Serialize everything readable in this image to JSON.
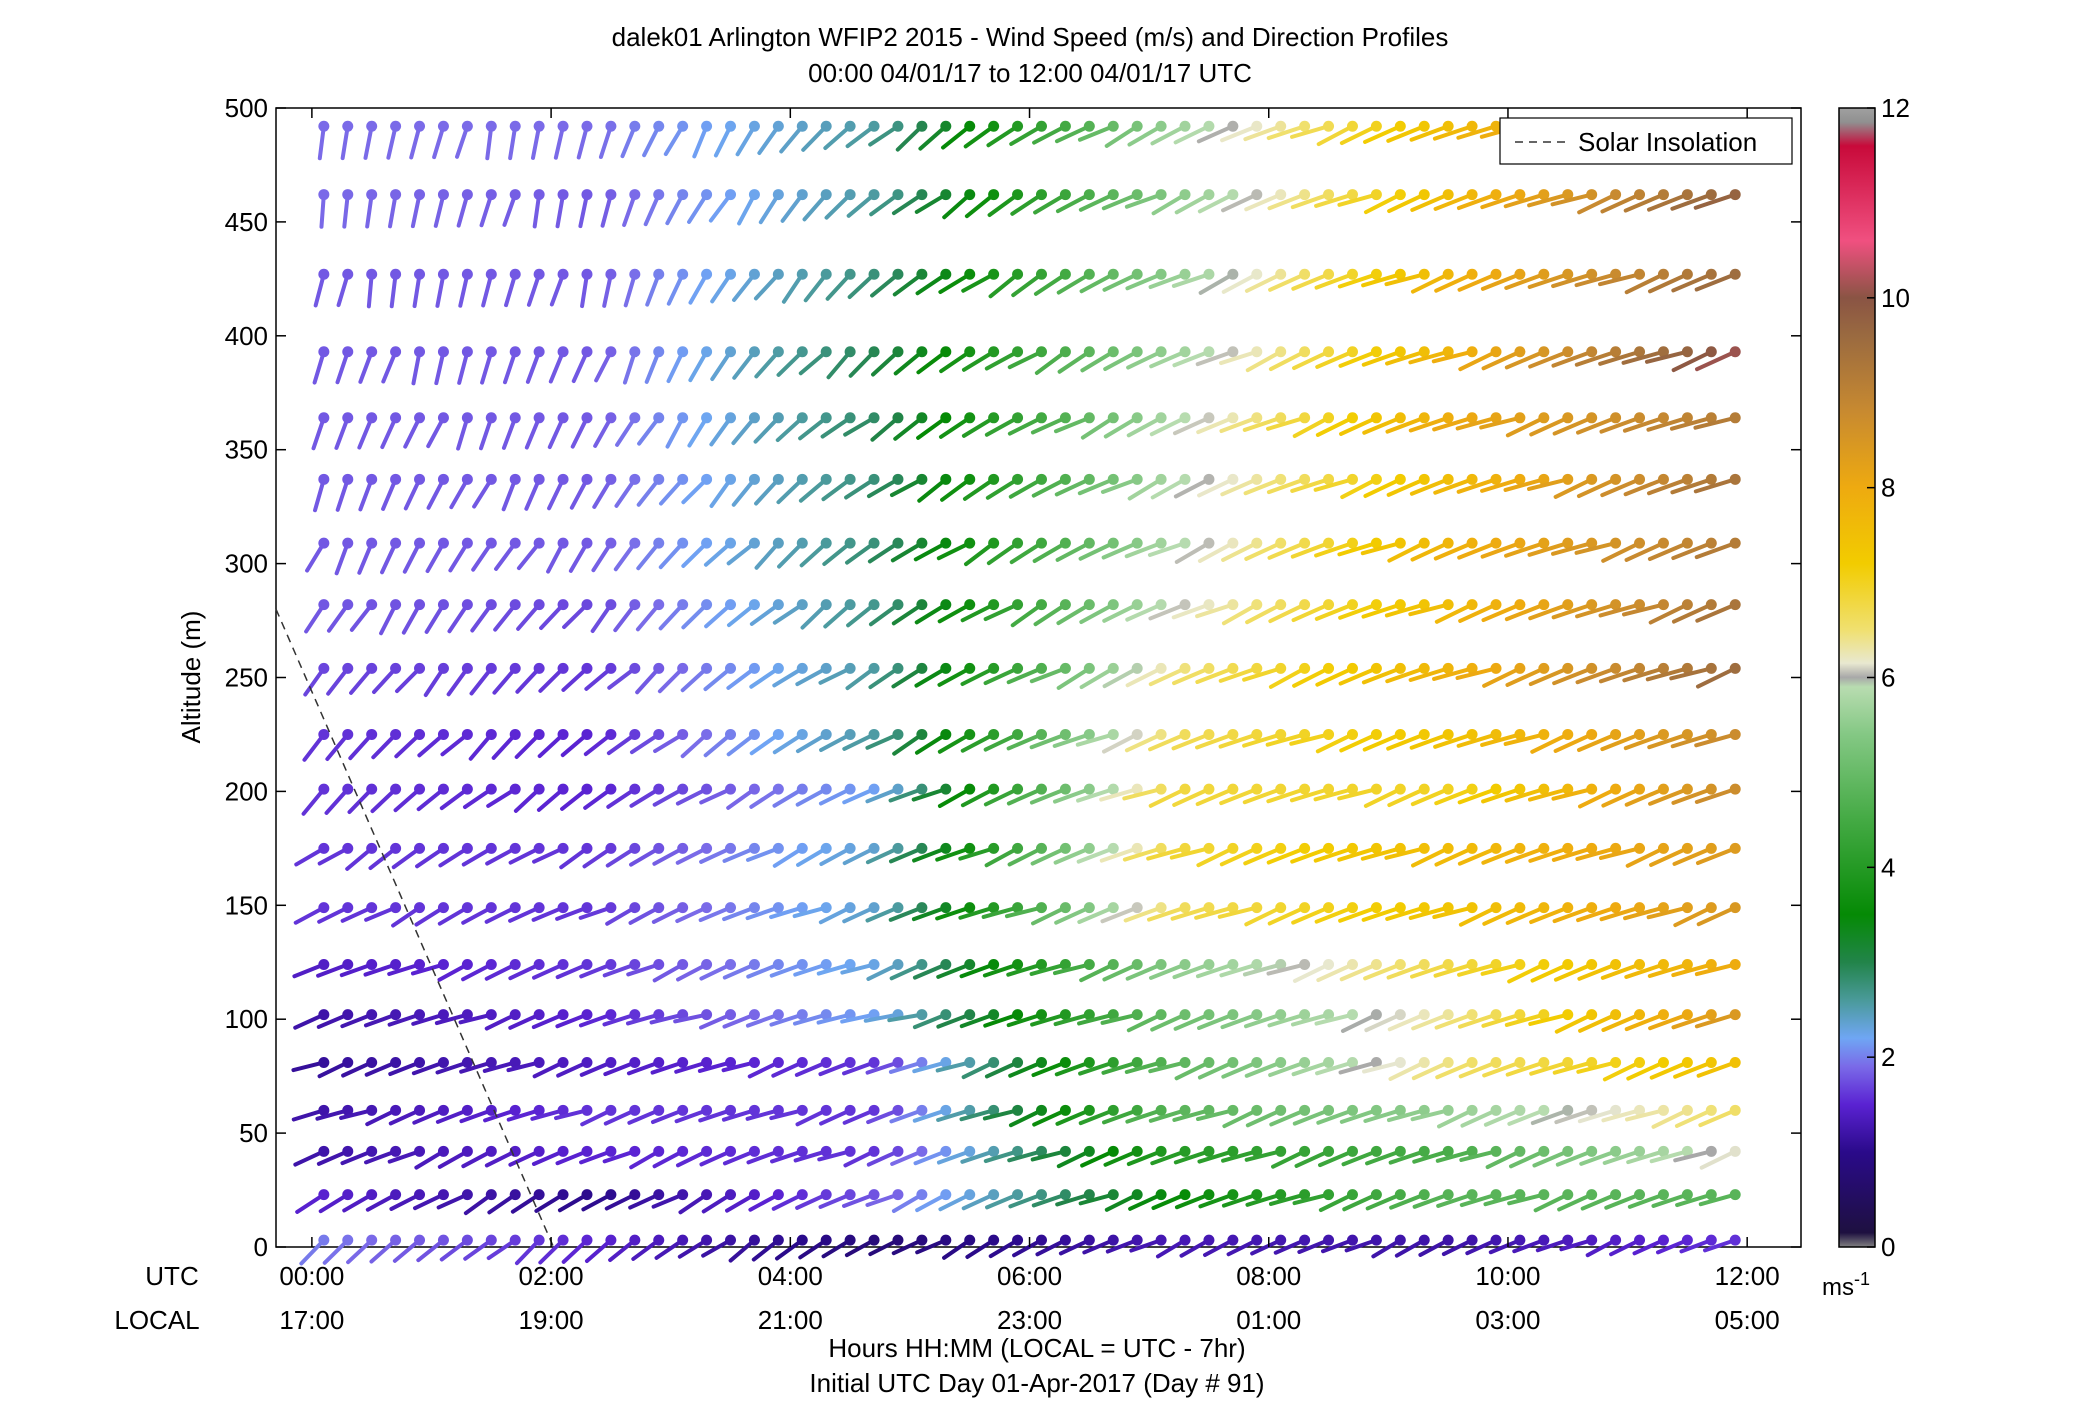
{
  "chart_data": {
    "type": "wind-barb-profile",
    "title": "dalek01 Arlington WFIP2 2015 - Wind Speed (m/s) and Direction Profiles",
    "subtitle": "00:00 04/01/17 to 12:00 04/01/17  UTC",
    "ylabel": "Altitude (m)",
    "xlabel": "Hours HH:MM  (LOCAL = UTC - 7hr)",
    "xlabel2": "Initial UTC Day 01-Apr-2017 (Day # 91)",
    "row_label_utc": "UTC",
    "row_label_local": "LOCAL",
    "ylim": [
      0,
      500
    ],
    "yticks": [
      "0",
      "50",
      "100",
      "150",
      "200",
      "250",
      "300",
      "350",
      "400",
      "450",
      "500"
    ],
    "xlim_hours": [
      -0.3,
      12.45
    ],
    "xticks_hours": [
      0,
      2,
      4,
      6,
      8,
      10,
      12
    ],
    "xticks_utc": [
      "00:00",
      "02:00",
      "04:00",
      "06:00",
      "08:00",
      "10:00",
      "12:00"
    ],
    "xticks_local": [
      "17:00",
      "19:00",
      "21:00",
      "23:00",
      "01:00",
      "03:00",
      "05:00"
    ],
    "legend": {
      "entry": "Solar Insolation",
      "placement": "top-right"
    },
    "solar_insolation_line": {
      "x_hours": [
        -0.3,
        2.02
      ],
      "y_m": [
        280,
        0
      ]
    },
    "colorbar": {
      "min": 0,
      "max": 12,
      "ticks": [
        "0",
        "2",
        "4",
        "6",
        "8",
        "10",
        "12"
      ],
      "unit": "ms",
      "unit_sup": "-1",
      "stops": [
        {
          "v": 0,
          "c": "#808080"
        },
        {
          "v": 0.15,
          "c": "#1e1040"
        },
        {
          "v": 1.0,
          "c": "#2a0a8a"
        },
        {
          "v": 1.5,
          "c": "#5a22d2"
        },
        {
          "v": 1.9,
          "c": "#7a6ae8"
        },
        {
          "v": 2.2,
          "c": "#6fa6f4"
        },
        {
          "v": 2.6,
          "c": "#4a9a9a"
        },
        {
          "v": 3.0,
          "c": "#22844a"
        },
        {
          "v": 3.5,
          "c": "#058a05"
        },
        {
          "v": 4.5,
          "c": "#44aa44"
        },
        {
          "v": 5.4,
          "c": "#84c884"
        },
        {
          "v": 5.9,
          "c": "#b8dcb0"
        },
        {
          "v": 6.0,
          "c": "#a8a8a8"
        },
        {
          "v": 6.15,
          "c": "#e8e8d0"
        },
        {
          "v": 6.5,
          "c": "#f0e070"
        },
        {
          "v": 7.2,
          "c": "#f2cc00"
        },
        {
          "v": 8.0,
          "c": "#eeaa10"
        },
        {
          "v": 8.8,
          "c": "#c88a30"
        },
        {
          "v": 9.6,
          "c": "#9a6a40"
        },
        {
          "v": 10.0,
          "c": "#8a5444"
        },
        {
          "v": 10.6,
          "c": "#f05080"
        },
        {
          "v": 11.6,
          "c": "#c80a3a"
        },
        {
          "v": 11.85,
          "c": "#909090"
        },
        {
          "v": 12,
          "c": "#a0a0a0"
        }
      ]
    },
    "levels_m": [
      3,
      23,
      42,
      60,
      81,
      102,
      124,
      149,
      175,
      201,
      225,
      254,
      282,
      309,
      337,
      364,
      393,
      427,
      462,
      492
    ],
    "time_step_hours": 0.2,
    "time_start_hours": 0.1,
    "time_count": 61,
    "profile_note": "wind speed (m/s) & direction per level over time, see series",
    "series": [
      {
        "key": "speed_by_level",
        "speed_ms": [
          [
            2.0,
            1.5,
            0.8,
            1.3,
            1.2,
            1.6
          ],
          [
            1.5,
            1.0,
            1.8,
            3.5,
            4.8,
            4.8
          ],
          [
            1.2,
            1.5,
            1.6,
            4.0,
            4.6,
            6.2
          ],
          [
            1.2,
            1.6,
            1.6,
            4.8,
            5.6,
            6.6
          ],
          [
            1.1,
            1.4,
            1.6,
            4.8,
            6.5,
            7.5
          ],
          [
            1.2,
            1.5,
            2.2,
            5.0,
            6.4,
            8.5
          ],
          [
            1.4,
            1.6,
            2.3,
            5.4,
            6.8,
            8.0
          ],
          [
            1.6,
            1.6,
            2.4,
            6.6,
            7.4,
            8.5
          ],
          [
            1.6,
            1.6,
            2.4,
            6.8,
            7.6,
            8.4
          ],
          [
            1.6,
            1.5,
            2.2,
            6.8,
            7.0,
            8.8
          ],
          [
            1.6,
            1.5,
            2.6,
            6.6,
            7.4,
            8.8
          ],
          [
            1.7,
            1.6,
            2.6,
            6.4,
            7.8,
            9.6
          ],
          [
            1.8,
            1.7,
            2.7,
            6.0,
            7.6,
            9.4
          ],
          [
            1.8,
            1.8,
            2.8,
            5.8,
            7.8,
            9.2
          ],
          [
            1.8,
            1.8,
            2.8,
            5.8,
            7.6,
            9.4
          ],
          [
            1.8,
            1.8,
            2.9,
            5.8,
            8.0,
            9.2
          ],
          [
            1.8,
            1.8,
            3.0,
            5.6,
            7.8,
            10.2
          ],
          [
            1.8,
            1.8,
            2.8,
            5.5,
            7.8,
            9.6
          ],
          [
            1.9,
            1.8,
            2.6,
            5.4,
            7.6,
            9.8
          ],
          [
            1.9,
            1.9,
            2.6,
            5.6,
            7.6,
            9.2
          ]
        ]
      },
      {
        "key": "direction_by_level_deg",
        "dir_deg": [
          [
            230,
            230,
            240,
            245,
            245,
            250
          ],
          [
            240,
            240,
            245,
            250,
            250,
            250
          ],
          [
            245,
            245,
            250,
            250,
            250,
            250
          ],
          [
            250,
            250,
            250,
            250,
            250,
            250
          ],
          [
            250,
            250,
            250,
            250,
            250,
            250
          ],
          [
            250,
            250,
            255,
            250,
            250,
            250
          ],
          [
            250,
            245,
            250,
            250,
            250,
            250
          ],
          [
            240,
            245,
            250,
            250,
            250,
            250
          ],
          [
            235,
            240,
            245,
            250,
            250,
            250
          ],
          [
            225,
            235,
            245,
            250,
            250,
            250
          ],
          [
            220,
            230,
            240,
            250,
            250,
            250
          ],
          [
            215,
            225,
            240,
            245,
            250,
            250
          ],
          [
            210,
            220,
            235,
            245,
            250,
            250
          ],
          [
            205,
            215,
            235,
            245,
            250,
            250
          ],
          [
            200,
            210,
            235,
            245,
            250,
            250
          ],
          [
            200,
            205,
            235,
            245,
            250,
            250
          ],
          [
            195,
            200,
            230,
            245,
            250,
            250
          ],
          [
            190,
            195,
            230,
            245,
            250,
            250
          ],
          [
            190,
            195,
            230,
            245,
            250,
            250
          ],
          [
            190,
            195,
            230,
            245,
            250,
            250
          ]
        ]
      }
    ]
  }
}
